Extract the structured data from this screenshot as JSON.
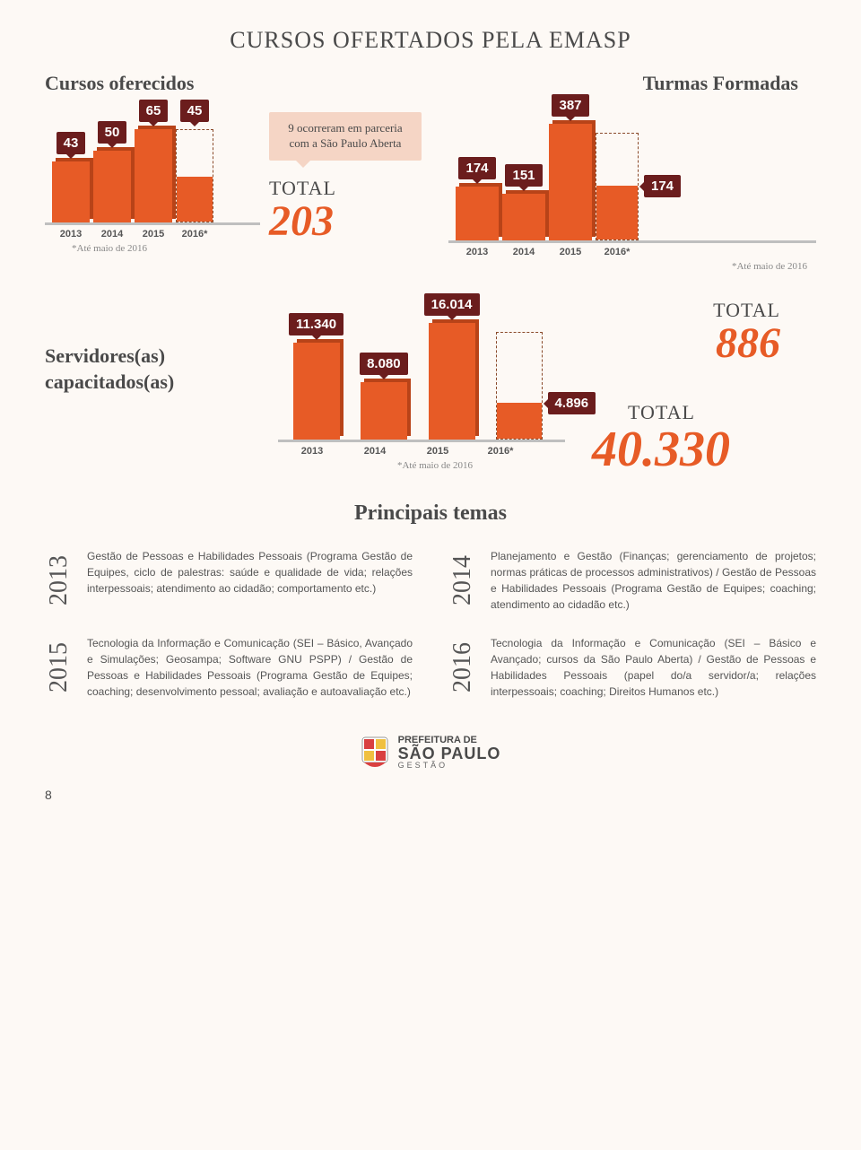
{
  "page_title": "CURSOS OFERTADOS PELA EMASP",
  "chart1": {
    "title": "Cursos oferecidos",
    "type": "bar",
    "years": [
      "2013",
      "2014",
      "2015",
      "2016*"
    ],
    "values": [
      43,
      50,
      65,
      45
    ],
    "heights": [
      68,
      80,
      104,
      72
    ],
    "dashed_index": 3,
    "dashed_full_height": 104,
    "inner_height": 50,
    "bar_color": "#e75b26",
    "bar_shadow": "#b84318",
    "badge_color": "#6b1d1d",
    "footnote": "*Até maio de 2016",
    "callout": "9 ocorreram em parceria com a São Paulo Aberta",
    "total_label": "TOTAL",
    "total": "203"
  },
  "chart2": {
    "title": "Turmas Formadas",
    "type": "bar",
    "years": [
      "2013",
      "2014",
      "2015",
      "2016*"
    ],
    "values": [
      174,
      151,
      387,
      174
    ],
    "heights": [
      60,
      52,
      130,
      60
    ],
    "dashed_index": 3,
    "dashed_full_height": 120,
    "inner_height": 60,
    "footnote": "*Até maio de 2016",
    "total_label": "TOTAL",
    "total": "886"
  },
  "chart3": {
    "title": "Servidores(as) capacitados(as)",
    "type": "bar",
    "years": [
      "2013",
      "2014",
      "2015",
      "2016*"
    ],
    "values": [
      "11.340",
      "8.080",
      "16.014",
      "4.896"
    ],
    "heights": [
      108,
      64,
      130,
      40
    ],
    "dashed_index": 3,
    "dashed_full_height": 120,
    "inner_height": 40,
    "footnote": "*Até maio de 2016",
    "total_label": "TOTAL",
    "total": "40.330"
  },
  "themes_title": "Principais temas",
  "themes": [
    {
      "year": "2013",
      "text": "Gestão de Pessoas e Habilidades Pessoais (Programa Gestão de Equipes, ciclo de palestras: saúde e qualidade de vida; relações interpessoais; atendimento ao cidadão; comportamento etc.)"
    },
    {
      "year": "2014",
      "text": "Planejamento e Gestão (Finanças; gerenciamento de projetos; normas práticas de processos administrativos) / Gestão de Pessoas e Habilidades Pessoais (Programa Gestão de Equipes; coaching; atendimento ao cidadão etc.)"
    },
    {
      "year": "2015",
      "text": "Tecnologia da Informação e Comunicação (SEI – Básico, Avançado e Simulações; Geosampa; Software GNU PSPP) / Gestão de Pessoas e Habilidades Pessoais (Programa Gestão de Equipes; coaching; desenvolvimento pessoal; avaliação e autoavaliação etc.)"
    },
    {
      "year": "2016",
      "text": "Tecnologia da Informação e Comunicação (SEI – Básico e Avançado; cursos da São Paulo Aberta) / Gestão de Pessoas e Habilidades Pessoais (papel do/a servidor/a; relações interpessoais; coaching; Direitos Humanos etc.)"
    }
  ],
  "footer": {
    "l1": "PREFEITURA DE",
    "l2": "SÃO PAULO",
    "l3": "GESTÃO"
  },
  "page_number": "8"
}
